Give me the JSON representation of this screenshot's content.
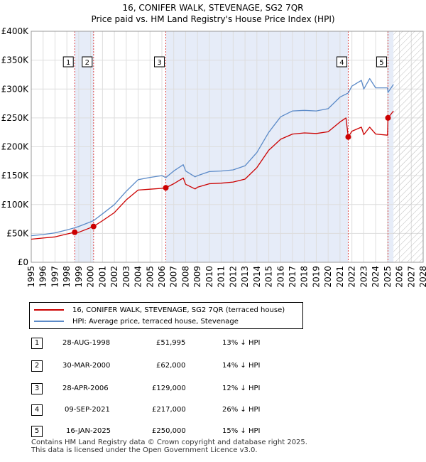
{
  "chart_data": {
    "type": "line",
    "title": "16, CONIFER WALK, STEVENAGE, SG2 7QR",
    "subtitle": "Price paid vs. HM Land Registry's House Price Index (HPI)",
    "xlim": [
      1995,
      2028
    ],
    "ylim": [
      0,
      400000
    ],
    "x_ticks": [
      1995,
      1996,
      1997,
      1998,
      1999,
      2000,
      2001,
      2002,
      2003,
      2004,
      2005,
      2006,
      2007,
      2008,
      2009,
      2010,
      2011,
      2012,
      2013,
      2014,
      2015,
      2016,
      2017,
      2018,
      2019,
      2020,
      2021,
      2022,
      2023,
      2024,
      2025,
      2026,
      2027,
      2028
    ],
    "y_ticks": [
      {
        "value": 0,
        "label": "£0"
      },
      {
        "value": 50000,
        "label": "£50K"
      },
      {
        "value": 100000,
        "label": "£100K"
      },
      {
        "value": 150000,
        "label": "£150K"
      },
      {
        "value": 200000,
        "label": "£200K"
      },
      {
        "value": 250000,
        "label": "£250K"
      },
      {
        "value": 300000,
        "label": "£300K"
      },
      {
        "value": 350000,
        "label": "£350K"
      },
      {
        "value": 400000,
        "label": "£400K"
      }
    ],
    "grid": true,
    "future_hatch_from": 2025.5,
    "shaded_spans": [
      [
        1998.66,
        2000.25
      ],
      [
        2006.33,
        2021.69
      ],
      [
        2025.04,
        2025.5
      ]
    ],
    "series": [
      {
        "name": "HPI: Average price, terraced house, Stevenage",
        "color": "#5b8ac8",
        "x": [
          1995,
          1996,
          1997,
          1998,
          1998.66,
          1999,
          2000,
          2000.25,
          2001,
          2002,
          2003,
          2004,
          2005,
          2006,
          2006.33,
          2007,
          2007.8,
          2008,
          2008.8,
          2009,
          2010,
          2011,
          2012,
          2013,
          2014,
          2015,
          2016,
          2017,
          2018,
          2019,
          2020,
          2021,
          2021.69,
          2022,
          2022.8,
          2023,
          2023.5,
          2024,
          2025,
          2025.04,
          2025.5
        ],
        "values": [
          46000,
          48000,
          51000,
          56000,
          59700,
          62000,
          70000,
          72100,
          84000,
          100000,
          123000,
          143000,
          147000,
          150000,
          146600,
          158000,
          169000,
          158000,
          148000,
          150000,
          157000,
          158000,
          160000,
          167000,
          190000,
          225000,
          252000,
          262000,
          263000,
          262000,
          266000,
          286000,
          293200,
          305000,
          315000,
          300000,
          318000,
          302000,
          302000,
          294100,
          308000
        ]
      },
      {
        "name": "16, CONIFER WALK, STEVENAGE, SG2 7QR (terraced house)",
        "color": "#cc0000",
        "x": [
          1995,
          1996,
          1997,
          1998,
          1998.66,
          1999,
          2000,
          2000.25,
          2001,
          2002,
          2003,
          2004,
          2005,
          2006,
          2006.33,
          2007,
          2007.8,
          2008,
          2008.8,
          2009,
          2010,
          2011,
          2012,
          2013,
          2014,
          2015,
          2016,
          2017,
          2018,
          2019,
          2020,
          2021,
          2021.5,
          2021.69,
          2022,
          2022.8,
          2023,
          2023.5,
          2024,
          2025,
          2025.04,
          2025.5
        ],
        "values": [
          40000,
          42000,
          44000,
          49000,
          51995,
          52000,
          60000,
          62000,
          72000,
          86000,
          108000,
          125000,
          126500,
          128000,
          129000,
          136000,
          146000,
          135000,
          127000,
          130000,
          136000,
          137000,
          139000,
          144000,
          164000,
          194000,
          213000,
          222000,
          224000,
          223000,
          226000,
          243000,
          250000,
          217000,
          227000,
          234000,
          221000,
          234000,
          222000,
          220000,
          250000,
          262000
        ]
      }
    ],
    "markers": [
      {
        "label": "1",
        "x": 1998.66,
        "y": 51995
      },
      {
        "label": "2",
        "x": 2000.25,
        "y": 62000
      },
      {
        "label": "3",
        "x": 2006.33,
        "y": 129000
      },
      {
        "label": "4",
        "x": 2021.69,
        "y": 217000
      },
      {
        "label": "5",
        "x": 2025.04,
        "y": 250000
      }
    ]
  },
  "legend": {
    "property_label": "16, CONIFER WALK, STEVENAGE, SG2 7QR (terraced house)",
    "hpi_label": "HPI: Average price, terraced house, Stevenage"
  },
  "sales": [
    {
      "num": "1",
      "date": "28-AUG-1998",
      "price": "£51,995",
      "hpi": "13% ↓ HPI"
    },
    {
      "num": "2",
      "date": "30-MAR-2000",
      "price": "£62,000",
      "hpi": "14% ↓ HPI"
    },
    {
      "num": "3",
      "date": "28-APR-2006",
      "price": "£129,000",
      "hpi": "12% ↓ HPI"
    },
    {
      "num": "4",
      "date": "09-SEP-2021",
      "price": "£217,000",
      "hpi": "26% ↓ HPI"
    },
    {
      "num": "5",
      "date": "16-JAN-2025",
      "price": "£250,000",
      "hpi": "15% ↓ HPI"
    }
  ],
  "footer": {
    "line1": "Contains HM Land Registry data © Crown copyright and database right 2025.",
    "line2": "This data is licensed under the Open Government Licence v3.0."
  }
}
